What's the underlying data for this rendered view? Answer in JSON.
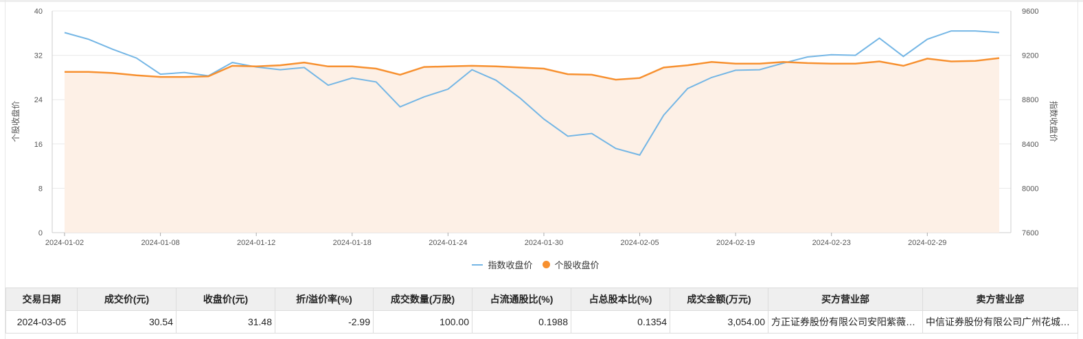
{
  "chart_data": {
    "type": "line",
    "x": [
      "2024-01-02",
      "2024-01-03",
      "2024-01-04",
      "2024-01-05",
      "2024-01-08",
      "2024-01-09",
      "2024-01-10",
      "2024-01-11",
      "2024-01-12",
      "2024-01-15",
      "2024-01-16",
      "2024-01-17",
      "2024-01-18",
      "2024-01-19",
      "2024-01-22",
      "2024-01-23",
      "2024-01-24",
      "2024-01-25",
      "2024-01-26",
      "2024-01-29",
      "2024-01-30",
      "2024-01-31",
      "2024-02-01",
      "2024-02-02",
      "2024-02-05",
      "2024-02-06",
      "2024-02-07",
      "2024-02-08",
      "2024-02-19",
      "2024-02-20",
      "2024-02-21",
      "2024-02-22",
      "2024-02-23",
      "2024-02-26",
      "2024-02-27",
      "2024-02-28",
      "2024-02-29",
      "2024-03-01",
      "2024-03-04",
      "2024-03-05"
    ],
    "x_tick_labels": [
      "2024-01-02",
      "2024-01-08",
      "2024-01-12",
      "2024-01-18",
      "2024-01-24",
      "2024-01-30",
      "2024-02-05",
      "2024-02-19",
      "2024-02-23",
      "2024-02-29"
    ],
    "y_left": {
      "label": "个股收盘价",
      "ticks": [
        "0",
        "8",
        "16",
        "24",
        "32",
        "40"
      ],
      "range": [
        0,
        40
      ]
    },
    "y_right": {
      "label": "指数收盘价",
      "ticks": [
        "7600",
        "8000",
        "8400",
        "8800",
        "9200",
        "9600"
      ],
      "range": [
        7600,
        9600
      ]
    },
    "series": [
      {
        "name": "指数收盘价",
        "axis": "right",
        "color": "#74b6e5",
        "style": "line",
        "values": [
          9405,
          9345,
          9255,
          9175,
          9030,
          9045,
          9015,
          9135,
          9095,
          9070,
          9090,
          8930,
          8995,
          8960,
          8735,
          8825,
          8895,
          9070,
          8975,
          8815,
          8625,
          8470,
          8495,
          8360,
          8300,
          8660,
          8900,
          9000,
          9065,
          9070,
          9130,
          9185,
          9205,
          9200,
          9355,
          9190,
          9345,
          9420,
          9420,
          9405
        ]
      },
      {
        "name": "个股收盘价",
        "axis": "left",
        "color": "#f7902f",
        "style": "area-line",
        "fill": "#fdf0e6",
        "values": [
          29.0,
          29.0,
          28.8,
          28.4,
          28.1,
          28.1,
          28.2,
          30.1,
          30.0,
          30.2,
          30.7,
          30.0,
          30.0,
          29.6,
          28.5,
          29.9,
          30.0,
          30.1,
          30.0,
          29.8,
          29.6,
          28.6,
          28.5,
          27.6,
          27.9,
          29.8,
          30.2,
          30.8,
          30.5,
          30.5,
          30.8,
          30.6,
          30.5,
          30.5,
          30.9,
          30.1,
          31.4,
          30.9,
          31.0,
          31.5
        ]
      }
    ],
    "legend": "bottom-center",
    "grid": true
  },
  "legend": {
    "index_label": "指数收盘价",
    "stock_label": "个股收盘价"
  },
  "table": {
    "headers": [
      "交易日期",
      "成交价(元)",
      "收盘价(元)",
      "折/溢价率(%)",
      "成交数量(万股)",
      "占流通股比(%)",
      "占总股本比(%)",
      "成交金额(万元)",
      "买方营业部",
      "卖方营业部"
    ],
    "row": {
      "date": "2024-03-05",
      "price": "30.54",
      "close": "31.48",
      "premium": "-2.99",
      "volume": "100.00",
      "float_ratio": "0.1988",
      "total_ratio": "0.1354",
      "amount": "3,054.00",
      "buyer": "方正证券股份有限公司安阳紫薇大道证券营业部",
      "seller": "中信证券股份有限公司广州花城大道证券营业部"
    }
  }
}
